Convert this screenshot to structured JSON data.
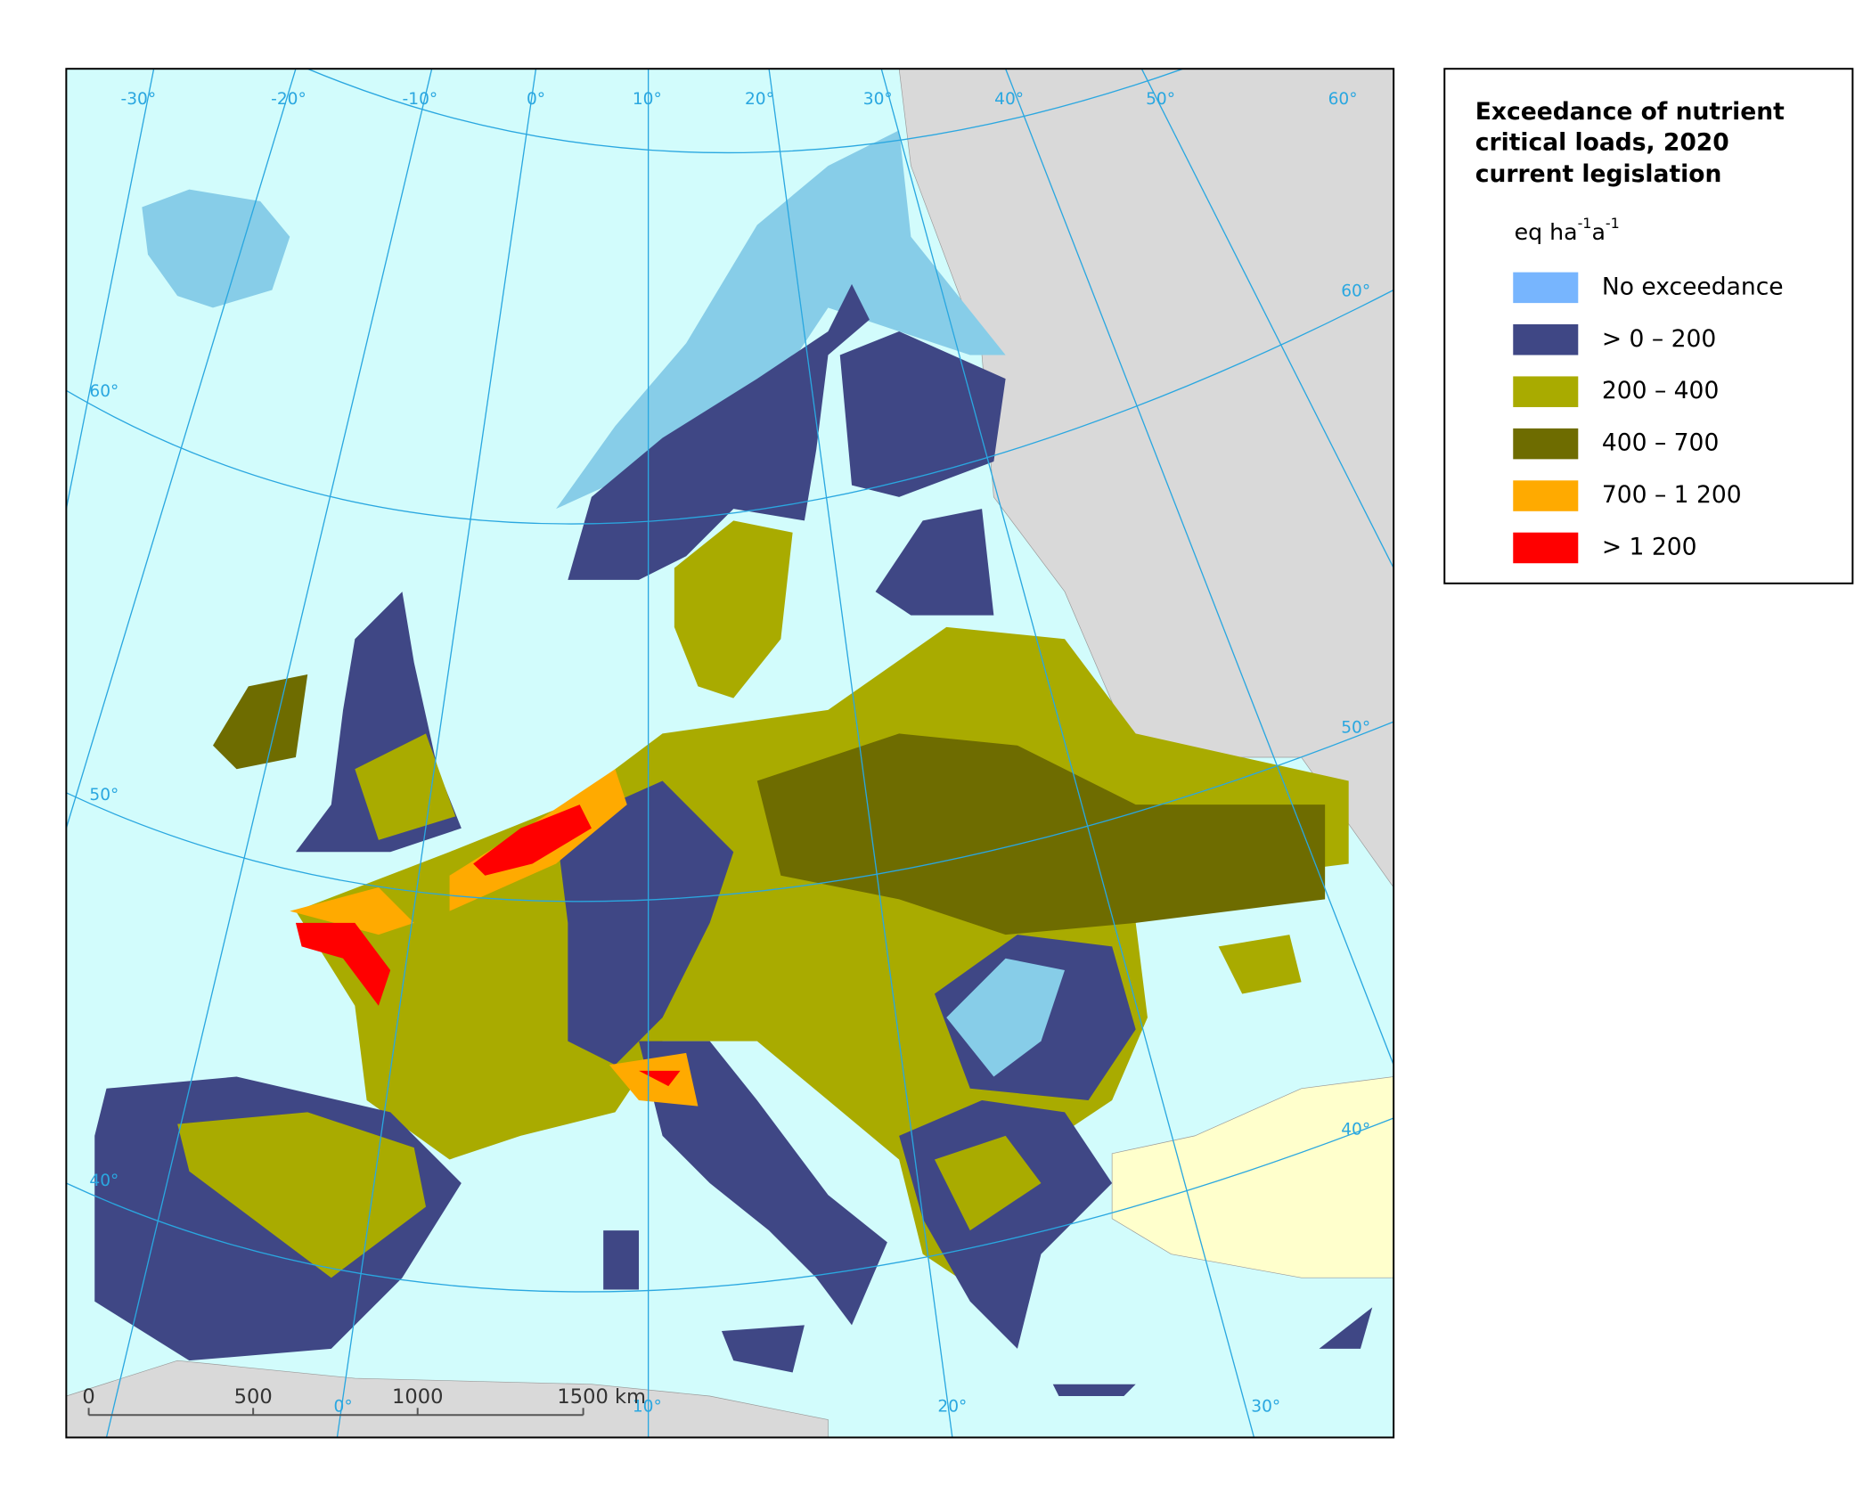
{
  "legend": {
    "title": [
      "Exceedance of nutrient",
      "critical loads, 2020",
      "current legislation"
    ],
    "unit": {
      "base": "eq ha",
      "exp1": "-1",
      "mid": "a",
      "exp2": "-1"
    },
    "items": [
      {
        "label": "No exceedance",
        "color": "#77b5fe"
      },
      {
        "label": "> 0 – 200",
        "color": "#3f4785"
      },
      {
        "label": "200 – 400",
        "color": "#a9ab00"
      },
      {
        "label": "400 – 700",
        "color": "#6e6c00"
      },
      {
        "label": "700 – 1 200",
        "color": "#ffaa00"
      },
      {
        "label": "> 1 200",
        "color": "#ff0000"
      }
    ]
  },
  "map": {
    "graticule_labels": [
      "-30°",
      "-20°",
      "-10°",
      "0°",
      "10°",
      "20°",
      "30°",
      "40°",
      "50°",
      "60°",
      "60°",
      "50°",
      "40°",
      "60°",
      "50°",
      "40°",
      "0°",
      "10°",
      "20°",
      "30°"
    ],
    "scale_bar": {
      "labels": [
        "0",
        "500",
        "1000",
        "1500 km"
      ]
    }
  }
}
